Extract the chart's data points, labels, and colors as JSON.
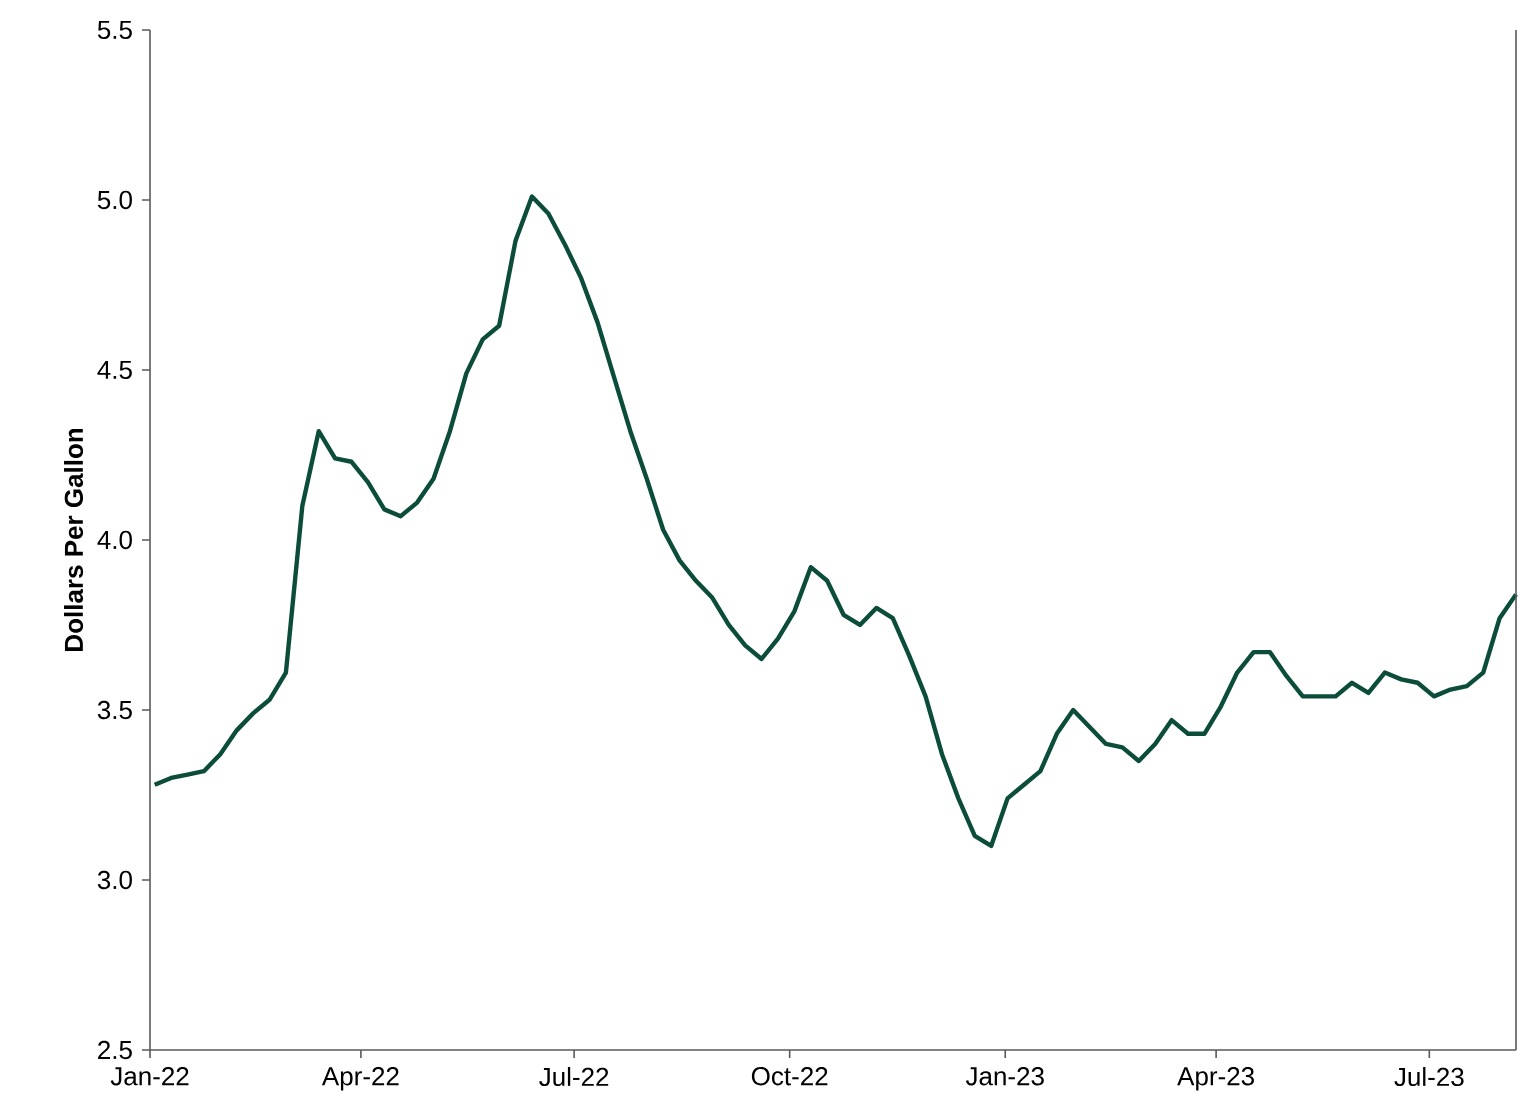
{
  "chart_data": {
    "type": "line",
    "ylabel": "Dollars Per Gallon",
    "x": [
      "2022-01-03",
      "2022-01-10",
      "2022-01-17",
      "2022-01-24",
      "2022-01-31",
      "2022-02-07",
      "2022-02-14",
      "2022-02-21",
      "2022-02-28",
      "2022-03-07",
      "2022-03-14",
      "2022-03-21",
      "2022-03-28",
      "2022-04-04",
      "2022-04-11",
      "2022-04-18",
      "2022-04-25",
      "2022-05-02",
      "2022-05-09",
      "2022-05-16",
      "2022-05-23",
      "2022-05-30",
      "2022-06-06",
      "2022-06-13",
      "2022-06-20",
      "2022-06-27",
      "2022-07-04",
      "2022-07-11",
      "2022-07-18",
      "2022-07-25",
      "2022-08-01",
      "2022-08-08",
      "2022-08-15",
      "2022-08-22",
      "2022-08-29",
      "2022-09-05",
      "2022-09-12",
      "2022-09-19",
      "2022-09-26",
      "2022-10-03",
      "2022-10-10",
      "2022-10-17",
      "2022-10-24",
      "2022-10-31",
      "2022-11-07",
      "2022-11-14",
      "2022-11-21",
      "2022-11-28",
      "2022-12-05",
      "2022-12-12",
      "2022-12-19",
      "2022-12-26",
      "2023-01-02",
      "2023-01-09",
      "2023-01-16",
      "2023-01-23",
      "2023-01-30",
      "2023-02-06",
      "2023-02-13",
      "2023-02-20",
      "2023-02-27",
      "2023-03-06",
      "2023-03-13",
      "2023-03-20",
      "2023-03-27",
      "2023-04-03",
      "2023-04-10",
      "2023-04-17",
      "2023-04-24",
      "2023-05-01",
      "2023-05-08",
      "2023-05-15",
      "2023-05-22",
      "2023-05-29",
      "2023-06-05",
      "2023-06-12",
      "2023-06-19",
      "2023-06-26",
      "2023-07-03",
      "2023-07-10",
      "2023-07-17",
      "2023-07-24",
      "2023-07-31",
      "2023-08-07"
    ],
    "series": [
      {
        "color": "#0b4d3a",
        "values": [
          3.28,
          3.3,
          3.31,
          3.32,
          3.37,
          3.44,
          3.49,
          3.53,
          3.61,
          4.1,
          4.32,
          4.24,
          4.23,
          4.17,
          4.09,
          4.07,
          4.11,
          4.18,
          4.32,
          4.49,
          4.59,
          4.63,
          4.88,
          5.01,
          4.96,
          4.87,
          4.77,
          4.64,
          4.48,
          4.32,
          4.18,
          4.03,
          3.94,
          3.88,
          3.83,
          3.75,
          3.69,
          3.65,
          3.71,
          3.79,
          3.92,
          3.88,
          3.78,
          3.75,
          3.8,
          3.77,
          3.66,
          3.54,
          3.37,
          3.24,
          3.13,
          3.1,
          3.24,
          3.28,
          3.32,
          3.43,
          3.5,
          3.45,
          3.4,
          3.39,
          3.35,
          3.4,
          3.47,
          3.43,
          3.43,
          3.51,
          3.61,
          3.67,
          3.67,
          3.6,
          3.54,
          3.54,
          3.54,
          3.58,
          3.55,
          3.61,
          3.59,
          3.58,
          3.54,
          3.56,
          3.57,
          3.61,
          3.77,
          3.84
        ]
      }
    ],
    "xlim": [
      "2022-01-01",
      "2023-08-07"
    ],
    "xticks": [
      {
        "value": "2022-01-01",
        "label": "Jan-22"
      },
      {
        "value": "2022-04-01",
        "label": "Apr-22"
      },
      {
        "value": "2022-07-01",
        "label": "Jul-22"
      },
      {
        "value": "2022-10-01",
        "label": "Oct-22"
      },
      {
        "value": "2023-01-01",
        "label": "Jan-23"
      },
      {
        "value": "2023-04-01",
        "label": "Apr-23"
      },
      {
        "value": "2023-07-01",
        "label": "Jul-23"
      }
    ],
    "ylim": [
      2.5,
      5.5
    ],
    "yticks": [
      2.5,
      {
        "value": 3,
        "label": "3.0"
      },
      3.5,
      {
        "value": 4,
        "label": "4.0"
      },
      4.5,
      {
        "value": 5,
        "label": "5.0"
      },
      5.5
    ],
    "grid": false
  }
}
